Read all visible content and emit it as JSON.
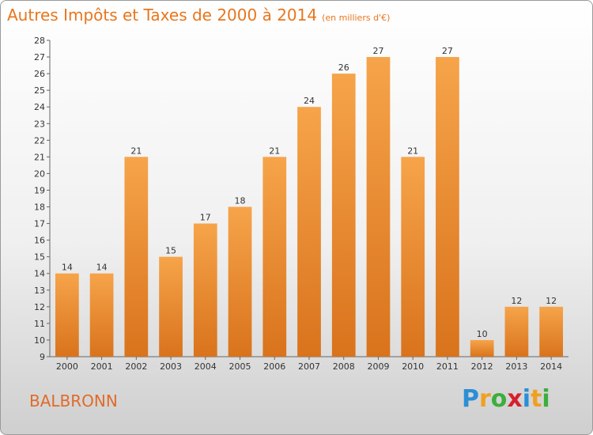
{
  "header": {
    "title": "Autres Impôts et Taxes de 2000 à 2014",
    "unit": "(en milliers d'€)"
  },
  "footer": {
    "commune": "BALBRONN",
    "logo_letters": [
      "P",
      "r",
      "o",
      "x",
      "i",
      "t",
      "i"
    ],
    "logo_colors": [
      "#2a8fd6",
      "#f0a020",
      "#3cae3c",
      "#d6202c",
      "#2a8fd6",
      "#f0a020",
      "#3cae3c"
    ]
  },
  "chart_data": {
    "type": "bar",
    "title": "Autres Impôts et Taxes de 2000 à 2014",
    "subtitle": "(en milliers d'€)",
    "categories": [
      "2000",
      "2001",
      "2002",
      "2003",
      "2004",
      "2005",
      "2006",
      "2007",
      "2008",
      "2009",
      "2010",
      "2011",
      "2012",
      "2013",
      "2014"
    ],
    "values": [
      14,
      14,
      21,
      15,
      17,
      18,
      21,
      24,
      26,
      27,
      21,
      27,
      10,
      12,
      12
    ],
    "ylim": [
      9,
      28
    ],
    "yticks": [
      9,
      10,
      11,
      12,
      13,
      14,
      15,
      16,
      17,
      18,
      19,
      20,
      21,
      22,
      23,
      24,
      25,
      26,
      27,
      28
    ],
    "grid": false,
    "bar_color": "#f29a3c",
    "bar_color_bottom": "#d9731c"
  }
}
